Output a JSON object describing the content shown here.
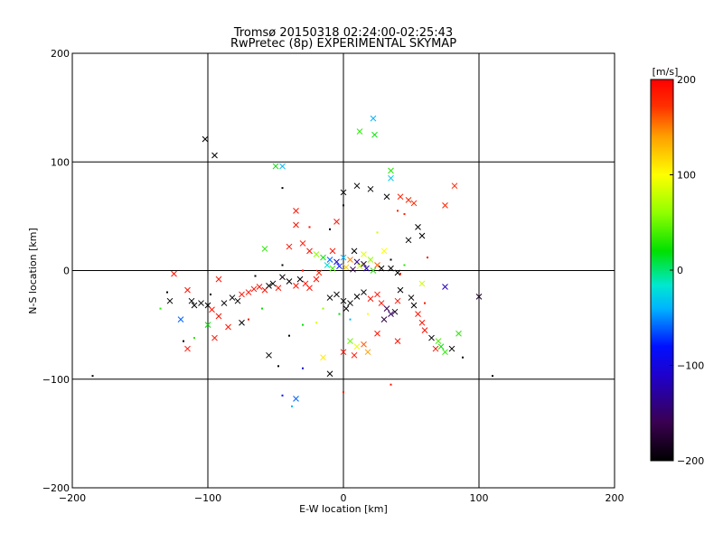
{
  "chart_data": {
    "type": "scatter",
    "title": "Tromsø 20150318 02:24:00-02:25:43",
    "subtitle": "RwPretec (8p) EXPERIMENTAL SKYMAP",
    "xlabel": "E-W location [km]",
    "ylabel": "N-S location [km]",
    "xlim": [
      -200,
      200
    ],
    "ylim": [
      -200,
      200
    ],
    "xticks": [
      -200,
      -100,
      0,
      100,
      200
    ],
    "yticks": [
      -200,
      -100,
      0,
      100,
      200
    ],
    "grid": true,
    "colorbar": {
      "label": "[m/s]",
      "range": [
        -200,
        200
      ],
      "ticks": [
        200,
        100,
        0,
        -100,
        -200
      ],
      "colormap": "black-purple-blue-cyan-green-yellow-orange-red"
    },
    "marker_legend": {
      "cross": "large x markers",
      "dot": "small dot markers"
    },
    "points": [
      {
        "x": -102,
        "y": 121,
        "v": -200,
        "m": "x"
      },
      {
        "x": -95,
        "y": 106,
        "v": -200,
        "m": "x"
      },
      {
        "x": -50,
        "y": 96,
        "v": 20,
        "m": "x"
      },
      {
        "x": -45,
        "y": 96,
        "v": -40,
        "m": "x"
      },
      {
        "x": 22,
        "y": 140,
        "v": -40,
        "m": "x"
      },
      {
        "x": 12,
        "y": 128,
        "v": 30,
        "m": "x"
      },
      {
        "x": 23,
        "y": 125,
        "v": 20,
        "m": "x"
      },
      {
        "x": 35,
        "y": 92,
        "v": 30,
        "m": "x"
      },
      {
        "x": 35,
        "y": 85,
        "v": -30,
        "m": "x"
      },
      {
        "x": 82,
        "y": 78,
        "v": 180,
        "m": "x"
      },
      {
        "x": -45,
        "y": 76,
        "v": -200,
        "m": "d"
      },
      {
        "x": 10,
        "y": 78,
        "v": -200,
        "m": "x"
      },
      {
        "x": 20,
        "y": 75,
        "v": -200,
        "m": "x"
      },
      {
        "x": 0,
        "y": 72,
        "v": -200,
        "m": "x"
      },
      {
        "x": 42,
        "y": 68,
        "v": 180,
        "m": "x"
      },
      {
        "x": 48,
        "y": 65,
        "v": 180,
        "m": "x"
      },
      {
        "x": 52,
        "y": 62,
        "v": 180,
        "m": "x"
      },
      {
        "x": 32,
        "y": 68,
        "v": -200,
        "m": "x"
      },
      {
        "x": 40,
        "y": 55,
        "v": 180,
        "m": "d"
      },
      {
        "x": 45,
        "y": 52,
        "v": 180,
        "m": "d"
      },
      {
        "x": 75,
        "y": 60,
        "v": 180,
        "m": "x"
      },
      {
        "x": -35,
        "y": 55,
        "v": 190,
        "m": "x"
      },
      {
        "x": -35,
        "y": 42,
        "v": 190,
        "m": "x"
      },
      {
        "x": -5,
        "y": 45,
        "v": 190,
        "m": "x"
      },
      {
        "x": -10,
        "y": 38,
        "v": -200,
        "m": "d"
      },
      {
        "x": 0,
        "y": 60,
        "v": -200,
        "m": "d"
      },
      {
        "x": 55,
        "y": 40,
        "v": -200,
        "m": "x"
      },
      {
        "x": 58,
        "y": 32,
        "v": -200,
        "m": "x"
      },
      {
        "x": 48,
        "y": 28,
        "v": -200,
        "m": "x"
      },
      {
        "x": -58,
        "y": 20,
        "v": 30,
        "m": "x"
      },
      {
        "x": -40,
        "y": 22,
        "v": 190,
        "m": "x"
      },
      {
        "x": -30,
        "y": 25,
        "v": 190,
        "m": "x"
      },
      {
        "x": -25,
        "y": 18,
        "v": 190,
        "m": "x"
      },
      {
        "x": -20,
        "y": 15,
        "v": 60,
        "m": "x"
      },
      {
        "x": -15,
        "y": 12,
        "v": 20,
        "m": "x"
      },
      {
        "x": -10,
        "y": 10,
        "v": -60,
        "m": "x"
      },
      {
        "x": -5,
        "y": 8,
        "v": -100,
        "m": "x"
      },
      {
        "x": 0,
        "y": 12,
        "v": -40,
        "m": "x"
      },
      {
        "x": 5,
        "y": 10,
        "v": 150,
        "m": "x"
      },
      {
        "x": 10,
        "y": 8,
        "v": -140,
        "m": "x"
      },
      {
        "x": 15,
        "y": 6,
        "v": -180,
        "m": "x"
      },
      {
        "x": 20,
        "y": 10,
        "v": 60,
        "m": "x"
      },
      {
        "x": 25,
        "y": 5,
        "v": 160,
        "m": "x"
      },
      {
        "x": 30,
        "y": 18,
        "v": 100,
        "m": "x"
      },
      {
        "x": -12,
        "y": 5,
        "v": -20,
        "m": "x"
      },
      {
        "x": -8,
        "y": 2,
        "v": 40,
        "m": "x"
      },
      {
        "x": -3,
        "y": 4,
        "v": -80,
        "m": "x"
      },
      {
        "x": 2,
        "y": 3,
        "v": 120,
        "m": "x"
      },
      {
        "x": 7,
        "y": 1,
        "v": -160,
        "m": "x"
      },
      {
        "x": 12,
        "y": 4,
        "v": 80,
        "m": "x"
      },
      {
        "x": 17,
        "y": 2,
        "v": -120,
        "m": "x"
      },
      {
        "x": 22,
        "y": 0,
        "v": 30,
        "m": "x"
      },
      {
        "x": 28,
        "y": 2,
        "v": -200,
        "m": "x"
      },
      {
        "x": 35,
        "y": 2,
        "v": -200,
        "m": "x"
      },
      {
        "x": 40,
        "y": -2,
        "v": -200,
        "m": "x"
      },
      {
        "x": 42,
        "y": -3,
        "v": 190,
        "m": "d"
      },
      {
        "x": -18,
        "y": -2,
        "v": 180,
        "m": "x"
      },
      {
        "x": -8,
        "y": 18,
        "v": 190,
        "m": "x"
      },
      {
        "x": 8,
        "y": 18,
        "v": -200,
        "m": "x"
      },
      {
        "x": 15,
        "y": 15,
        "v": 90,
        "m": "x"
      },
      {
        "x": -125,
        "y": -3,
        "v": 190,
        "m": "x"
      },
      {
        "x": -130,
        "y": -20,
        "v": -200,
        "m": "d"
      },
      {
        "x": -128,
        "y": -28,
        "v": -200,
        "m": "x"
      },
      {
        "x": -115,
        "y": -18,
        "v": 190,
        "m": "x"
      },
      {
        "x": -112,
        "y": -28,
        "v": -200,
        "m": "x"
      },
      {
        "x": -110,
        "y": -32,
        "v": -200,
        "m": "x"
      },
      {
        "x": -105,
        "y": -30,
        "v": -200,
        "m": "x"
      },
      {
        "x": -100,
        "y": -32,
        "v": -200,
        "m": "x"
      },
      {
        "x": -97,
        "y": -36,
        "v": 190,
        "m": "x"
      },
      {
        "x": -92,
        "y": -42,
        "v": 190,
        "m": "x"
      },
      {
        "x": -88,
        "y": -30,
        "v": -200,
        "m": "x"
      },
      {
        "x": -82,
        "y": -25,
        "v": -200,
        "m": "x"
      },
      {
        "x": -78,
        "y": -28,
        "v": -200,
        "m": "x"
      },
      {
        "x": -75,
        "y": -22,
        "v": 190,
        "m": "x"
      },
      {
        "x": -70,
        "y": -20,
        "v": 190,
        "m": "x"
      },
      {
        "x": -66,
        "y": -17,
        "v": 190,
        "m": "x"
      },
      {
        "x": -62,
        "y": -15,
        "v": 190,
        "m": "x"
      },
      {
        "x": -58,
        "y": -18,
        "v": 190,
        "m": "x"
      },
      {
        "x": -55,
        "y": -14,
        "v": -200,
        "m": "x"
      },
      {
        "x": -52,
        "y": -12,
        "v": -200,
        "m": "x"
      },
      {
        "x": -48,
        "y": -16,
        "v": 190,
        "m": "x"
      },
      {
        "x": -45,
        "y": -6,
        "v": -200,
        "m": "x"
      },
      {
        "x": -40,
        "y": -10,
        "v": -200,
        "m": "x"
      },
      {
        "x": -35,
        "y": -14,
        "v": 190,
        "m": "x"
      },
      {
        "x": -32,
        "y": -8,
        "v": -200,
        "m": "x"
      },
      {
        "x": -28,
        "y": -12,
        "v": 190,
        "m": "x"
      },
      {
        "x": -25,
        "y": -16,
        "v": 190,
        "m": "x"
      },
      {
        "x": -20,
        "y": -8,
        "v": 190,
        "m": "x"
      },
      {
        "x": -100,
        "y": -50,
        "v": 20,
        "m": "x"
      },
      {
        "x": -110,
        "y": -62,
        "v": 30,
        "m": "d"
      },
      {
        "x": -115,
        "y": -72,
        "v": 190,
        "m": "x"
      },
      {
        "x": -95,
        "y": -62,
        "v": 190,
        "m": "x"
      },
      {
        "x": -85,
        "y": -52,
        "v": 190,
        "m": "x"
      },
      {
        "x": -75,
        "y": -48,
        "v": -200,
        "m": "x"
      },
      {
        "x": -118,
        "y": -65,
        "v": -200,
        "m": "d"
      },
      {
        "x": -185,
        "y": -97,
        "v": -200,
        "m": "d"
      },
      {
        "x": -55,
        "y": -78,
        "v": -200,
        "m": "x"
      },
      {
        "x": -48,
        "y": -88,
        "v": -200,
        "m": "d"
      },
      {
        "x": -45,
        "y": -115,
        "v": -80,
        "m": "d"
      },
      {
        "x": -35,
        "y": -118,
        "v": -60,
        "m": "x"
      },
      {
        "x": -38,
        "y": -125,
        "v": -40,
        "m": "d"
      },
      {
        "x": -30,
        "y": -90,
        "v": -100,
        "m": "d"
      },
      {
        "x": -10,
        "y": -95,
        "v": -200,
        "m": "x"
      },
      {
        "x": -30,
        "y": -50,
        "v": 20,
        "m": "d"
      },
      {
        "x": -20,
        "y": -48,
        "v": 90,
        "m": "d"
      },
      {
        "x": -10,
        "y": -25,
        "v": -200,
        "m": "x"
      },
      {
        "x": -5,
        "y": -22,
        "v": -200,
        "m": "x"
      },
      {
        "x": 0,
        "y": -28,
        "v": -200,
        "m": "x"
      },
      {
        "x": 5,
        "y": -30,
        "v": -200,
        "m": "x"
      },
      {
        "x": 2,
        "y": -35,
        "v": -200,
        "m": "x"
      },
      {
        "x": 10,
        "y": -24,
        "v": -200,
        "m": "x"
      },
      {
        "x": 15,
        "y": -20,
        "v": -200,
        "m": "x"
      },
      {
        "x": 20,
        "y": -26,
        "v": 190,
        "m": "x"
      },
      {
        "x": 25,
        "y": -22,
        "v": 190,
        "m": "x"
      },
      {
        "x": 28,
        "y": -30,
        "v": 190,
        "m": "x"
      },
      {
        "x": 32,
        "y": -35,
        "v": -160,
        "m": "x"
      },
      {
        "x": 35,
        "y": -40,
        "v": -150,
        "m": "x"
      },
      {
        "x": 30,
        "y": -45,
        "v": -170,
        "m": "x"
      },
      {
        "x": 38,
        "y": -38,
        "v": -190,
        "m": "x"
      },
      {
        "x": 40,
        "y": -28,
        "v": 190,
        "m": "x"
      },
      {
        "x": 42,
        "y": -18,
        "v": -200,
        "m": "x"
      },
      {
        "x": 50,
        "y": -25,
        "v": -200,
        "m": "x"
      },
      {
        "x": 52,
        "y": -32,
        "v": -200,
        "m": "x"
      },
      {
        "x": 55,
        "y": -40,
        "v": 190,
        "m": "x"
      },
      {
        "x": 58,
        "y": -48,
        "v": 190,
        "m": "x"
      },
      {
        "x": 60,
        "y": -55,
        "v": 190,
        "m": "x"
      },
      {
        "x": 58,
        "y": -12,
        "v": 80,
        "m": "x"
      },
      {
        "x": 100,
        "y": -24,
        "v": -180,
        "m": "x"
      },
      {
        "x": 75,
        "y": -15,
        "v": -120,
        "m": "x"
      },
      {
        "x": 65,
        "y": -62,
        "v": -200,
        "m": "x"
      },
      {
        "x": 70,
        "y": -65,
        "v": 40,
        "m": "x"
      },
      {
        "x": 72,
        "y": -70,
        "v": 20,
        "m": "x"
      },
      {
        "x": 68,
        "y": -72,
        "v": 190,
        "m": "x"
      },
      {
        "x": 75,
        "y": -75,
        "v": 30,
        "m": "x"
      },
      {
        "x": 80,
        "y": -72,
        "v": -200,
        "m": "x"
      },
      {
        "x": 85,
        "y": -58,
        "v": 30,
        "m": "x"
      },
      {
        "x": 88,
        "y": -80,
        "v": -200,
        "m": "d"
      },
      {
        "x": 110,
        "y": -97,
        "v": -200,
        "m": "d"
      },
      {
        "x": 40,
        "y": -65,
        "v": 190,
        "m": "x"
      },
      {
        "x": 25,
        "y": -58,
        "v": 190,
        "m": "x"
      },
      {
        "x": 5,
        "y": -65,
        "v": 50,
        "m": "x"
      },
      {
        "x": 10,
        "y": -70,
        "v": 90,
        "m": "x"
      },
      {
        "x": 0,
        "y": -75,
        "v": 190,
        "m": "x"
      },
      {
        "x": 8,
        "y": -78,
        "v": 190,
        "m": "x"
      },
      {
        "x": 15,
        "y": -68,
        "v": 160,
        "m": "x"
      },
      {
        "x": 18,
        "y": -75,
        "v": 140,
        "m": "x"
      },
      {
        "x": -15,
        "y": -80,
        "v": 110,
        "m": "x"
      },
      {
        "x": 0,
        "y": -112,
        "v": 190,
        "m": "d"
      },
      {
        "x": 35,
        "y": -105,
        "v": 190,
        "m": "d"
      },
      {
        "x": -3,
        "y": -40,
        "v": 20,
        "m": "d"
      },
      {
        "x": 5,
        "y": -45,
        "v": -40,
        "m": "d"
      },
      {
        "x": -15,
        "y": -35,
        "v": 60,
        "m": "d"
      },
      {
        "x": 18,
        "y": -40,
        "v": 100,
        "m": "d"
      },
      {
        "x": 25,
        "y": 35,
        "v": 80,
        "m": "d"
      },
      {
        "x": -25,
        "y": 40,
        "v": 190,
        "m": "d"
      },
      {
        "x": 62,
        "y": 12,
        "v": 190,
        "m": "d"
      },
      {
        "x": -45,
        "y": 5,
        "v": -200,
        "m": "d"
      },
      {
        "x": -60,
        "y": -35,
        "v": 20,
        "m": "d"
      },
      {
        "x": -70,
        "y": -45,
        "v": 190,
        "m": "d"
      },
      {
        "x": -40,
        "y": -60,
        "v": -200,
        "m": "d"
      },
      {
        "x": 60,
        "y": -30,
        "v": 190,
        "m": "d"
      },
      {
        "x": 45,
        "y": 5,
        "v": 30,
        "m": "d"
      },
      {
        "x": 35,
        "y": 10,
        "v": -200,
        "m": "d"
      },
      {
        "x": -30,
        "y": 0,
        "v": 190,
        "m": "d"
      },
      {
        "x": -65,
        "y": -5,
        "v": -200,
        "m": "d"
      },
      {
        "x": -92,
        "y": -8,
        "v": 190,
        "m": "x"
      },
      {
        "x": -120,
        "y": -45,
        "v": -60,
        "m": "x"
      },
      {
        "x": -98,
        "y": -22,
        "v": -200,
        "m": "d"
      },
      {
        "x": -135,
        "y": -35,
        "v": 30,
        "m": "d"
      }
    ]
  }
}
